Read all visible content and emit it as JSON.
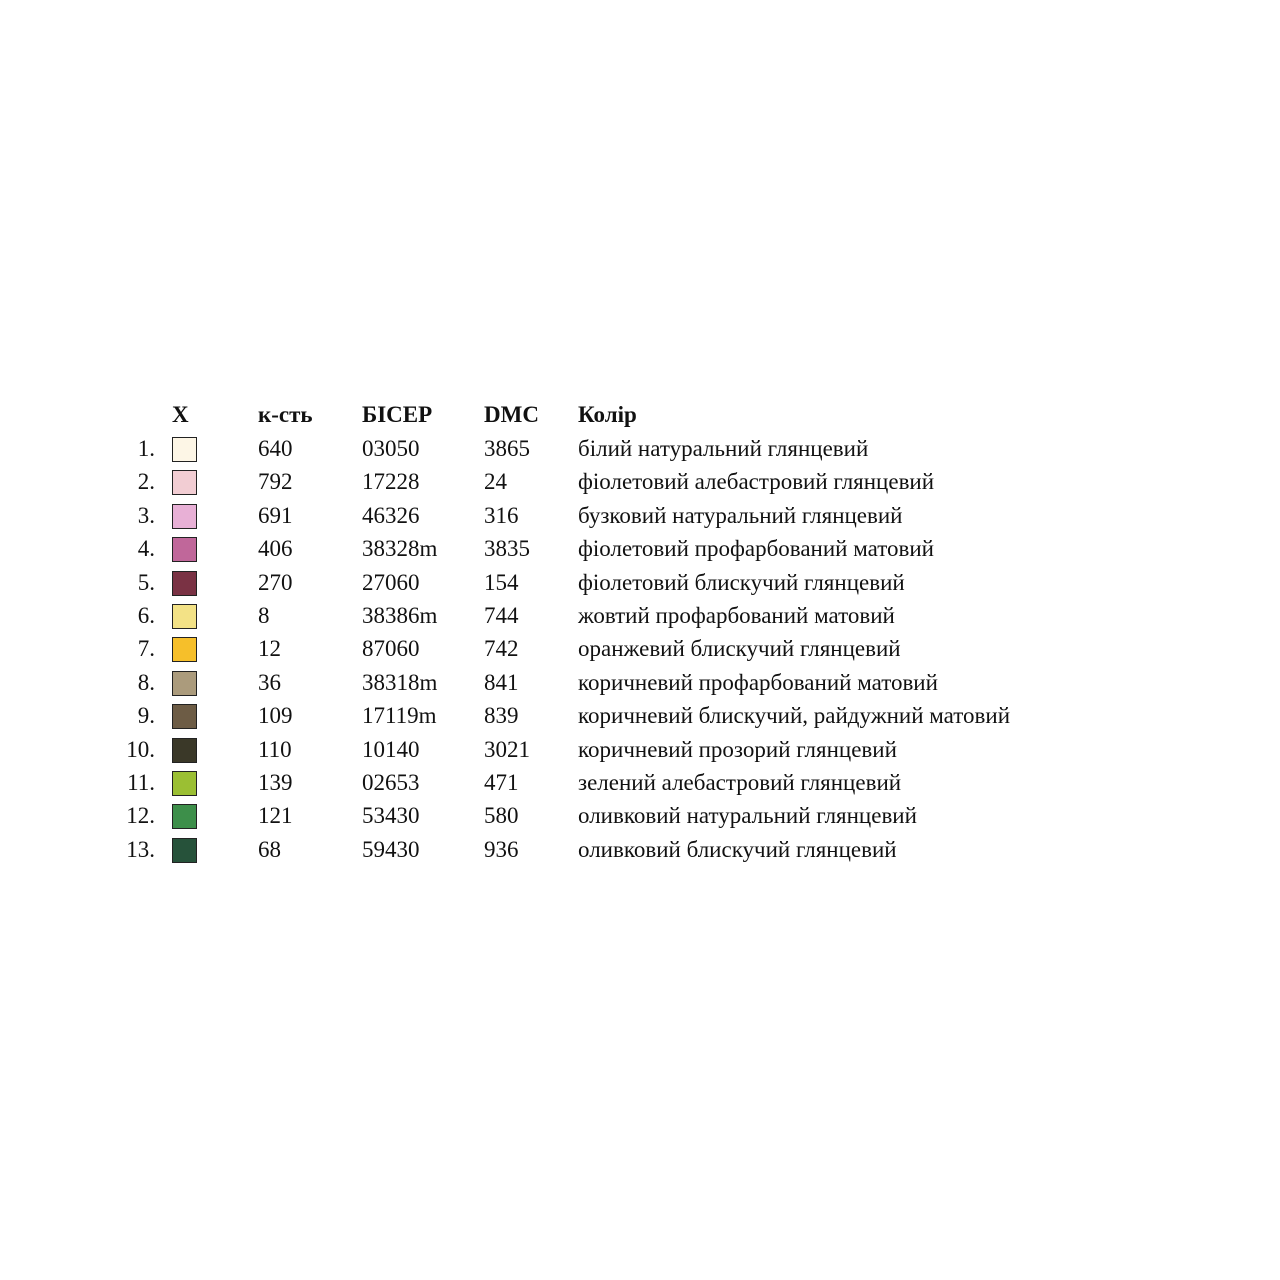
{
  "table": {
    "header": [
      "X",
      "к-сть",
      "БІСЕР",
      "DMC",
      "Колір"
    ],
    "rows": [
      {
        "number": "1.",
        "color": "#fdf6e6",
        "quantity": "640",
        "bead": "03050",
        "dmc": "3865",
        "name": "білий натуральний глянцевий"
      },
      {
        "number": "2.",
        "color": "#f2cdd3",
        "quantity": "792",
        "bead": "17228",
        "dmc": "24",
        "name": "фіолетовий алебастровий глянцевий"
      },
      {
        "number": "3.",
        "color": "#e8b0d6",
        "quantity": "691",
        "bead": "46326",
        "dmc": "316",
        "name": "бузковий натуральний глянцевий"
      },
      {
        "number": "4.",
        "color": "#c0679a",
        "quantity": "406",
        "bead": "38328m",
        "dmc": "3835",
        "name": "фіолетовий профарбований матовий"
      },
      {
        "number": "5.",
        "color": "#7a3244",
        "quantity": "270",
        "bead": "27060",
        "dmc": "154",
        "name": "фіолетовий блискучий глянцевий"
      },
      {
        "number": "6.",
        "color": "#f3e286",
        "quantity": "8",
        "bead": "38386m",
        "dmc": "744",
        "name": "жовтий профарбований матовий"
      },
      {
        "number": "7.",
        "color": "#f6bf2a",
        "quantity": "12",
        "bead": "87060",
        "dmc": "742",
        "name": "оранжевий блискучий глянцевий"
      },
      {
        "number": "8.",
        "color": "#ab9b7c",
        "quantity": "36",
        "bead": "38318m",
        "dmc": "841",
        "name": "коричневий профарбований матовий"
      },
      {
        "number": "9.",
        "color": "#6d5c45",
        "quantity": "109",
        "bead": "17119m",
        "dmc": "839",
        "name": "коричневий блискучий, райдужний матовий"
      },
      {
        "number": "10.",
        "color": "#3a3828",
        "quantity": "110",
        "bead": "10140",
        "dmc": "3021",
        "name": "коричневий прозорий глянцевий"
      },
      {
        "number": "11.",
        "color": "#9bbf33",
        "quantity": "139",
        "bead": "02653",
        "dmc": "471",
        "name": "зелений алебастровий глянцевий"
      },
      {
        "number": "12.",
        "color": "#3d8f4a",
        "quantity": "121",
        "bead": "53430",
        "dmc": "580",
        "name": "оливковий натуральний глянцевий"
      },
      {
        "number": "13.",
        "color": "#26523a",
        "quantity": "68",
        "bead": "59430",
        "dmc": "936",
        "name": "оливковий блискучий глянцевий"
      }
    ]
  }
}
